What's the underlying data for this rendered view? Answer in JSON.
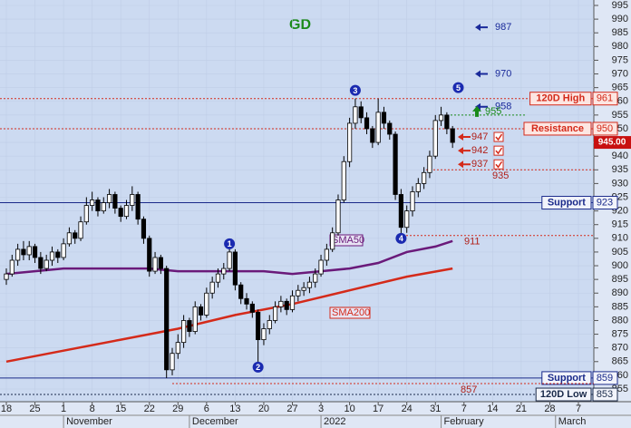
{
  "chart_data": {
    "type": "candlestick",
    "title": "GD",
    "xlim": [
      0,
      100
    ],
    "ylim": [
      855,
      995
    ],
    "yticks": [
      855,
      860,
      865,
      870,
      875,
      880,
      885,
      890,
      895,
      900,
      905,
      910,
      915,
      920,
      925,
      930,
      935,
      940,
      945,
      950,
      955,
      960,
      965,
      970,
      975,
      980,
      985,
      990,
      995
    ],
    "xticks": [
      {
        "value": 0,
        "label": "18"
      },
      {
        "value": 5,
        "label": "25"
      },
      {
        "value": 10,
        "label": "1"
      },
      {
        "value": 15,
        "label": "8"
      },
      {
        "value": 20,
        "label": "15"
      },
      {
        "value": 25,
        "label": "22"
      },
      {
        "value": 30,
        "label": "29"
      },
      {
        "value": 35,
        "label": "6"
      },
      {
        "value": 40,
        "label": "13"
      },
      {
        "value": 45,
        "label": "20"
      },
      {
        "value": 50,
        "label": "27"
      },
      {
        "value": 55,
        "label": "3"
      },
      {
        "value": 60,
        "label": "10"
      },
      {
        "value": 65,
        "label": "17"
      },
      {
        "value": 70,
        "label": "24"
      },
      {
        "value": 75,
        "label": "31"
      },
      {
        "value": 80,
        "label": "7"
      },
      {
        "value": 85,
        "label": "14"
      },
      {
        "value": 90,
        "label": "21"
      },
      {
        "value": 95,
        "label": "28"
      },
      {
        "value": 100,
        "label": "7"
      }
    ],
    "months": [
      {
        "value": 10,
        "label": "November"
      },
      {
        "value": 32,
        "label": "December"
      },
      {
        "value": 55,
        "label": "2022"
      },
      {
        "value": 76,
        "label": "February"
      },
      {
        "value": 96,
        "label": "March"
      }
    ],
    "grid": true,
    "up_color": "#ffffff",
    "down_color": "#000000",
    "candles": [
      [
        895,
        899,
        893,
        897
      ],
      [
        897,
        904,
        896,
        902
      ],
      [
        902,
        908,
        900,
        906
      ],
      [
        906,
        909,
        902,
        904
      ],
      [
        904,
        909,
        902,
        907
      ],
      [
        907,
        908,
        901,
        903
      ],
      [
        903,
        905,
        897,
        899
      ],
      [
        899,
        904,
        898,
        902
      ],
      [
        902,
        907,
        900,
        905
      ],
      [
        905,
        906,
        901,
        903
      ],
      [
        903,
        910,
        902,
        908
      ],
      [
        908,
        914,
        907,
        912
      ],
      [
        912,
        913,
        908,
        910
      ],
      [
        910,
        918,
        909,
        916
      ],
      [
        916,
        925,
        915,
        922
      ],
      [
        922,
        927,
        920,
        924
      ],
      [
        924,
        925,
        918,
        920
      ],
      [
        920,
        925,
        919,
        923
      ],
      [
        923,
        928,
        921,
        926
      ],
      [
        926,
        927,
        919,
        921
      ],
      [
        921,
        922,
        916,
        918
      ],
      [
        918,
        924,
        917,
        922
      ],
      [
        922,
        929,
        920,
        926
      ],
      [
        926,
        927,
        915,
        917
      ],
      [
        917,
        918,
        908,
        910
      ],
      [
        910,
        911,
        896,
        898
      ],
      [
        898,
        905,
        897,
        903
      ],
      [
        903,
        904,
        897,
        899
      ],
      [
        899,
        900,
        859,
        862
      ],
      [
        862,
        870,
        860,
        868
      ],
      [
        868,
        875,
        866,
        872
      ],
      [
        872,
        882,
        870,
        880
      ],
      [
        880,
        881,
        874,
        876
      ],
      [
        876,
        887,
        875,
        885
      ],
      [
        885,
        886,
        880,
        882
      ],
      [
        882,
        892,
        881,
        890
      ],
      [
        890,
        896,
        888,
        894
      ],
      [
        894,
        899,
        892,
        897
      ],
      [
        897,
        901,
        895,
        899
      ],
      [
        899,
        908,
        898,
        905
      ],
      [
        905,
        906,
        891,
        893
      ],
      [
        893,
        894,
        886,
        888
      ],
      [
        888,
        890,
        884,
        886
      ],
      [
        886,
        887,
        881,
        883
      ],
      [
        883,
        884,
        864,
        873
      ],
      [
        873,
        879,
        871,
        877
      ],
      [
        877,
        882,
        875,
        880
      ],
      [
        880,
        887,
        879,
        885
      ],
      [
        885,
        889,
        883,
        887
      ],
      [
        887,
        888,
        882,
        884
      ],
      [
        884,
        891,
        883,
        889
      ],
      [
        889,
        893,
        887,
        891
      ],
      [
        891,
        894,
        889,
        892
      ],
      [
        892,
        896,
        890,
        894
      ],
      [
        894,
        899,
        892,
        897
      ],
      [
        897,
        904,
        896,
        902
      ],
      [
        902,
        908,
        900,
        906
      ],
      [
        906,
        914,
        905,
        912
      ],
      [
        912,
        926,
        911,
        924
      ],
      [
        924,
        940,
        923,
        938
      ],
      [
        938,
        954,
        936,
        952
      ],
      [
        952,
        961,
        950,
        958
      ],
      [
        958,
        960,
        952,
        954
      ],
      [
        954,
        956,
        948,
        950
      ],
      [
        950,
        951,
        943,
        945
      ],
      [
        945,
        961,
        944,
        956
      ],
      [
        956,
        958,
        950,
        952
      ],
      [
        952,
        953,
        946,
        948
      ],
      [
        948,
        949,
        924,
        926
      ],
      [
        926,
        928,
        911,
        914
      ],
      [
        914,
        922,
        912,
        920
      ],
      [
        920,
        929,
        918,
        927
      ],
      [
        927,
        932,
        925,
        930
      ],
      [
        930,
        936,
        928,
        934
      ],
      [
        934,
        942,
        932,
        940
      ],
      [
        940,
        955,
        939,
        953
      ],
      [
        953,
        958,
        951,
        955
      ],
      [
        955,
        956,
        948,
        950
      ],
      [
        950,
        951,
        943,
        945
      ]
    ],
    "series": [
      {
        "name": "SMA50",
        "color": "#6a1a7a",
        "x": [
          0,
          5,
          10,
          15,
          20,
          25,
          30,
          35,
          40,
          45,
          50,
          55,
          60,
          65,
          70,
          75,
          78
        ],
        "values": [
          897,
          898,
          899,
          899,
          899,
          899,
          898,
          898,
          898,
          898,
          897,
          898,
          899,
          901,
          905,
          907,
          909
        ]
      },
      {
        "name": "SMA200",
        "color": "#d42a1a",
        "x": [
          0,
          10,
          20,
          30,
          40,
          50,
          60,
          70,
          78
        ],
        "values": [
          865,
          869,
          873,
          877,
          882,
          886,
          891,
          896,
          899
        ]
      }
    ],
    "levels": [
      {
        "label": "120D High",
        "value": 961,
        "color": "#d42a1a",
        "style": "dotted"
      },
      {
        "label": "Resistance",
        "value": 950,
        "color": "#d42a1a",
        "style": "dotted"
      },
      {
        "label": "Support",
        "value": 923,
        "color": "#1a2a8a",
        "style": "solid"
      },
      {
        "label": "Support",
        "value": 859,
        "color": "#1a2a8a",
        "style": "solid"
      },
      {
        "label": "120D Low",
        "value": 853,
        "color": "#1a2a4a",
        "style": "dotted"
      }
    ],
    "blue_targets": [
      987,
      970,
      958
    ],
    "red_targets": [
      947,
      942,
      937
    ],
    "green_target": 955,
    "red_notes": [
      935,
      911,
      857
    ],
    "waves": [
      {
        "label": "1",
        "index": 39,
        "value": 908
      },
      {
        "label": "2",
        "index": 44,
        "value": 863
      },
      {
        "label": "3",
        "index": 61,
        "value": 964
      },
      {
        "label": "4",
        "index": 69,
        "value": 910
      },
      {
        "label": "5",
        "index": 79,
        "value": 965
      }
    ],
    "last_price": {
      "value": 945,
      "label": "945.00"
    }
  }
}
